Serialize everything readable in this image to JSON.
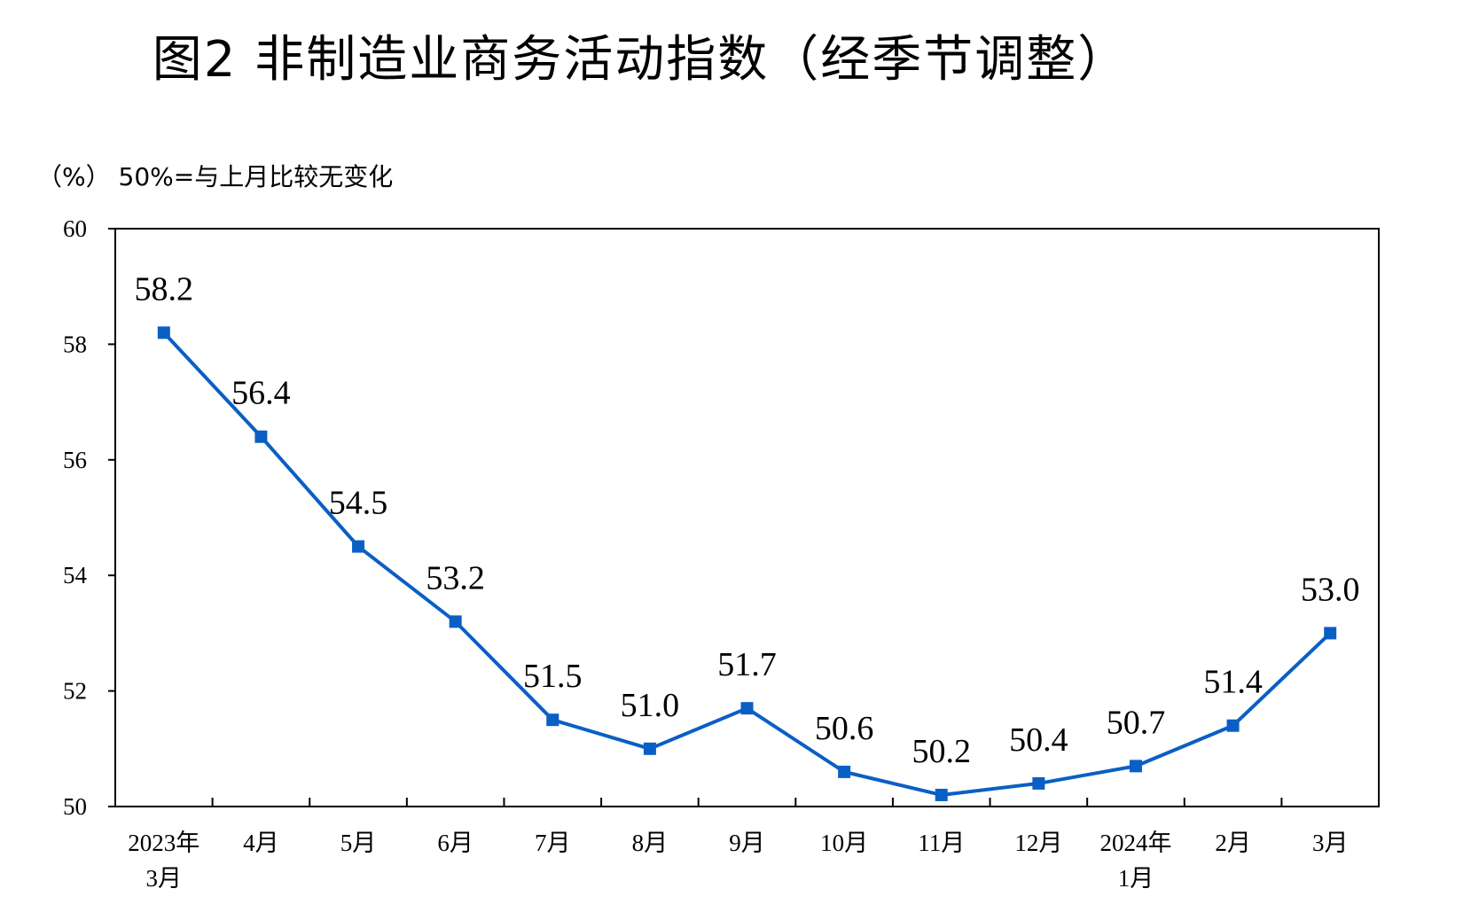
{
  "title": "图2  非制造业商务活动指数（经季节调整）",
  "unit_note": "（%）  50%=与上月比较无变化",
  "colors": {
    "line": "#0a5fc4",
    "axis": "#000000"
  },
  "chart_data": {
    "type": "line",
    "title": "图2  非制造业商务活动指数（经季节调整）",
    "ylabel": "（%）",
    "annotation": "50%=与上月比较无变化",
    "ylim": [
      50,
      60
    ],
    "yticks": [
      50,
      52,
      54,
      56,
      58,
      60
    ],
    "grid": false,
    "categories": [
      [
        "2023年",
        "3月"
      ],
      [
        "4月"
      ],
      [
        "5月"
      ],
      [
        "6月"
      ],
      [
        "7月"
      ],
      [
        "8月"
      ],
      [
        "9月"
      ],
      [
        "10月"
      ],
      [
        "11月"
      ],
      [
        "12月"
      ],
      [
        "2024年",
        "1月"
      ],
      [
        "2月"
      ],
      [
        "3月"
      ]
    ],
    "values": [
      58.2,
      56.4,
      54.5,
      53.2,
      51.5,
      51.0,
      51.7,
      50.6,
      50.2,
      50.4,
      50.7,
      51.4,
      53.0
    ],
    "value_labels": [
      "58.2",
      "56.4",
      "54.5",
      "53.2",
      "51.5",
      "51.0",
      "51.7",
      "50.6",
      "50.2",
      "50.4",
      "50.7",
      "51.4",
      "53.0"
    ],
    "marker": "square"
  }
}
